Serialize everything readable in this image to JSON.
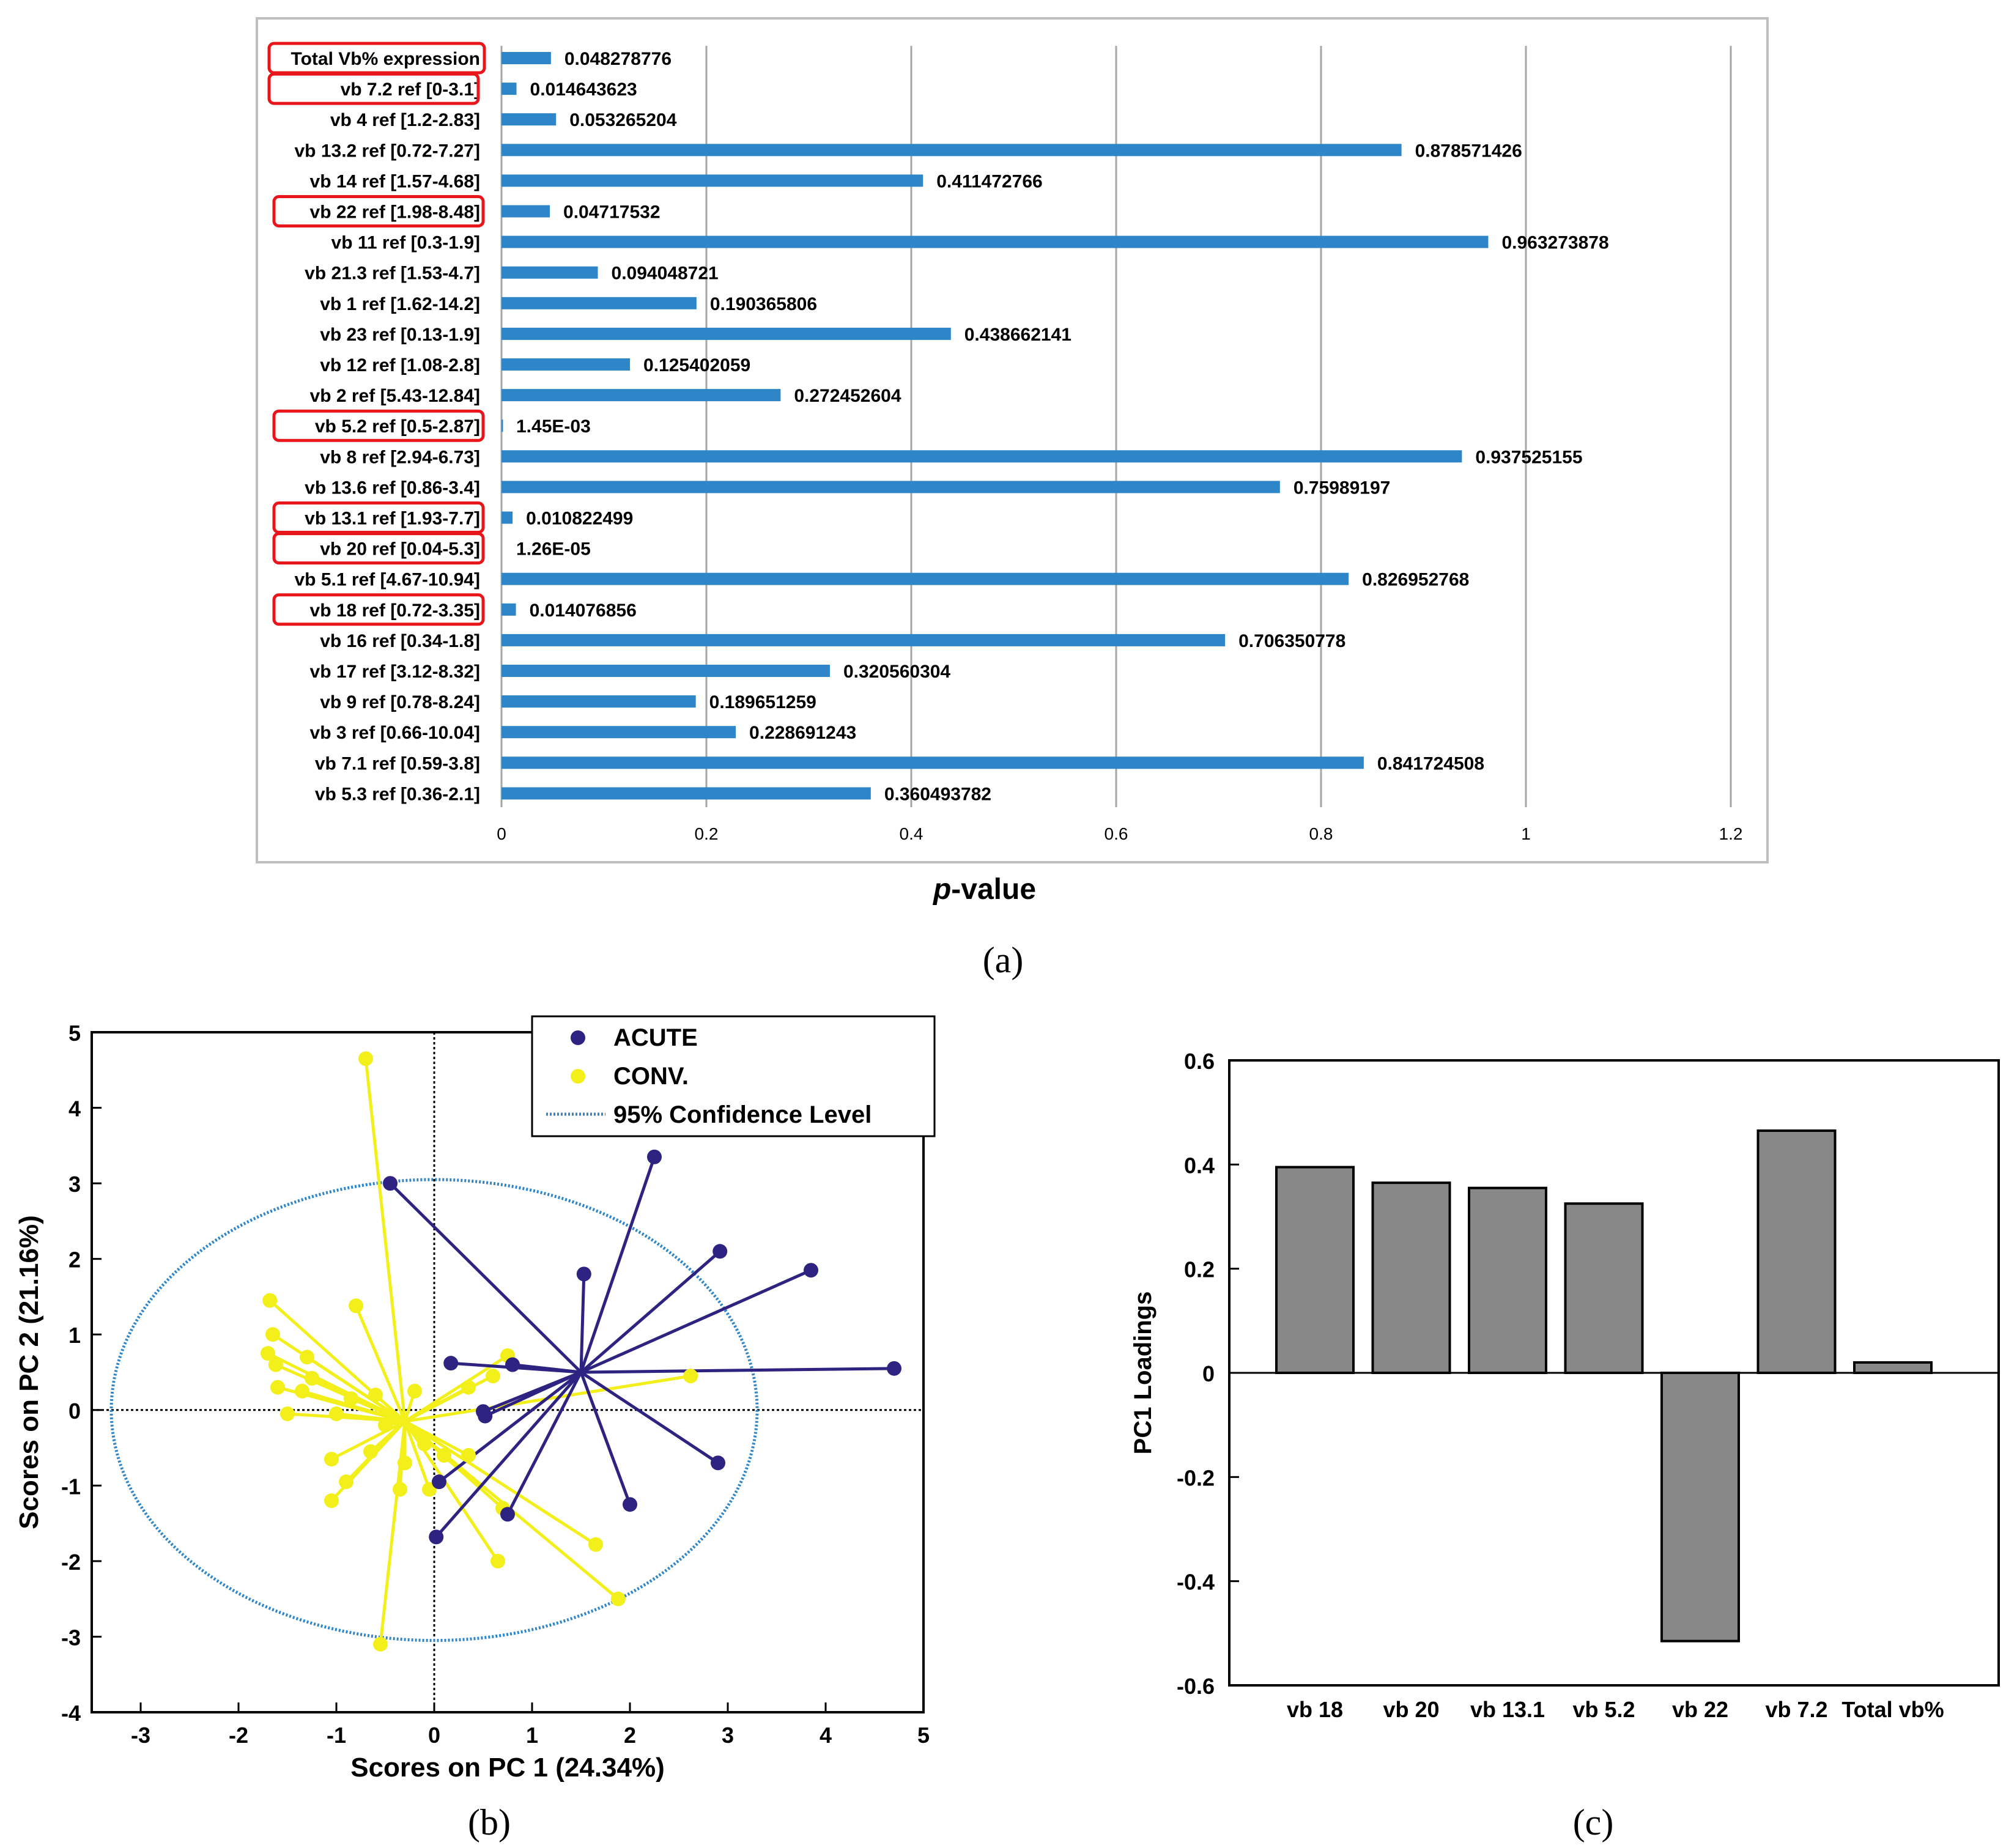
{
  "chart_data": [
    {
      "panel": "(a)",
      "type": "bar",
      "orientation": "horizontal",
      "xlabel_italic": "p",
      "xlabel_rest": "-value",
      "xlim": [
        0,
        1.2
      ],
      "xticks": [
        "0",
        "0.2",
        "0.4",
        "0.6",
        "0.8",
        "1",
        "1.2"
      ],
      "categories": [
        "Total Vb% expression",
        "vb 7.2  ref [0-3.1]",
        "vb 4  ref [1.2-2.83]",
        "vb 13.2  ref [0.72-7.27]",
        "vb 14  ref [1.57-4.68]",
        "vb 22  ref [1.98-8.48]",
        "vb 11  ref [0.3-1.9]",
        "vb 21.3  ref [1.53-4.7]",
        "vb 1  ref [1.62-14.2]",
        "vb 23  ref [0.13-1.9]",
        "vb 12  ref [1.08-2.8]",
        "vb 2  ref [5.43-12.84]",
        "vb 5.2  ref [0.5-2.87]",
        "vb 8  ref [2.94-6.73]",
        "vb 13.6  ref [0.86-3.4]",
        "vb 13.1  ref [1.93-7.7]",
        "vb 20 ref [0.04-5.3]",
        "vb 5.1 ref [4.67-10.94]",
        "vb 18 ref [0.72-3.35]",
        "vb 16 ref [0.34-1.8]",
        "vb 17 ref [3.12-8.32]",
        "vb 9 ref [0.78-8.24]",
        "vb 3 ref [0.66-10.04]",
        "vb 7.1 ref [0.59-3.8]",
        "vb 5.3 ref [0.36-2.1]"
      ],
      "values": [
        0.048278776,
        0.014643623,
        0.053265204,
        0.878571426,
        0.411472766,
        0.04717532,
        0.963273878,
        0.094048721,
        0.190365806,
        0.438662141,
        0.125402059,
        0.272452604,
        0.00145,
        0.937525155,
        0.75989197,
        0.010822499,
        1.26e-05,
        0.826952768,
        0.014076856,
        0.706350778,
        0.320560304,
        0.189651259,
        0.228691243,
        0.841724508,
        0.360493782
      ],
      "value_labels": [
        "0.048278776",
        "0.014643623",
        "0.053265204",
        "0.878571426",
        "0.411472766",
        "0.04717532",
        "0.963273878",
        "0.094048721",
        "0.190365806",
        "0.438662141",
        "0.125402059",
        "0.272452604",
        "1.45E-03",
        "0.937525155",
        "0.75989197",
        "0.010822499",
        "1.26E-05",
        "0.826952768",
        "0.014076856",
        "0.706350778",
        "0.320560304",
        "0.189651259",
        "0.228691243",
        "0.841724508",
        "0.360493782"
      ],
      "highlighted": [
        0,
        1,
        5,
        12,
        15,
        16,
        18
      ],
      "colors": {
        "bar": "#2e86c9",
        "highlight": "#e8161b",
        "grid": "#a6a6a6",
        "frame": "#bfbfbf"
      }
    },
    {
      "panel": "(b)",
      "type": "scatter",
      "xlabel": "Scores on PC 1 (24.34%)",
      "ylabel": "Scores on PC 2 (21.16%)",
      "xlim": [
        -3.5,
        5
      ],
      "ylim": [
        -4,
        5
      ],
      "xticks": [
        "-3",
        "-2",
        "-1",
        "0",
        "1",
        "2",
        "3",
        "4",
        "5"
      ],
      "yticks": [
        "-4",
        "-3",
        "-2",
        "-1",
        "0",
        "1",
        "2",
        "3",
        "4",
        "5"
      ],
      "legend": {
        "position": "top-right",
        "entries": [
          "ACUTE",
          "CONV.",
          "95% Confidence Level"
        ]
      },
      "ellipse": {
        "cx": -0.0,
        "cy": 0.0,
        "rx": 3.3,
        "ry": 3.05,
        "color": "#2e86c9"
      },
      "series": [
        {
          "name": "ACUTE",
          "color": "#2e2381",
          "centroid": [
            1.5,
            0.5
          ],
          "points": [
            [
              -0.45,
              3.0
            ],
            [
              2.25,
              3.35
            ],
            [
              2.92,
              2.1
            ],
            [
              3.85,
              1.85
            ],
            [
              1.53,
              1.8
            ],
            [
              0.17,
              0.62
            ],
            [
              0.8,
              0.6
            ],
            [
              4.7,
              0.55
            ],
            [
              0.5,
              -0.02
            ],
            [
              0.52,
              -0.08
            ],
            [
              2.9,
              -0.7
            ],
            [
              0.05,
              -0.95
            ],
            [
              2.0,
              -1.25
            ],
            [
              0.75,
              -1.38
            ],
            [
              0.02,
              -1.68
            ]
          ]
        },
        {
          "name": "CONV.",
          "color": "#f2ef1a",
          "centroid": [
            -0.3,
            -0.15
          ],
          "points": [
            [
              -0.7,
              4.65
            ],
            [
              -1.68,
              1.45
            ],
            [
              -0.8,
              1.38
            ],
            [
              -1.65,
              1.0
            ],
            [
              -1.7,
              0.75
            ],
            [
              -1.3,
              0.7
            ],
            [
              -1.62,
              0.6
            ],
            [
              -1.25,
              0.42
            ],
            [
              -1.6,
              0.3
            ],
            [
              -1.35,
              0.25
            ],
            [
              -1.5,
              -0.05
            ],
            [
              -1.0,
              -0.05
            ],
            [
              -0.85,
              0.15
            ],
            [
              -0.6,
              0.2
            ],
            [
              -0.2,
              0.25
            ],
            [
              0.75,
              0.72
            ],
            [
              0.6,
              0.45
            ],
            [
              2.62,
              0.45
            ],
            [
              0.35,
              0.3
            ],
            [
              -0.5,
              -0.2
            ],
            [
              -0.65,
              -0.55
            ],
            [
              -1.05,
              -0.65
            ],
            [
              -0.1,
              -0.45
            ],
            [
              -0.3,
              -0.7
            ],
            [
              0.1,
              -0.6
            ],
            [
              0.35,
              -0.6
            ],
            [
              -0.9,
              -0.95
            ],
            [
              -1.05,
              -1.2
            ],
            [
              -0.35,
              -1.05
            ],
            [
              -0.05,
              -1.05
            ],
            [
              0.7,
              -1.3
            ],
            [
              1.65,
              -1.78
            ],
            [
              0.65,
              -2.0
            ],
            [
              1.88,
              -2.5
            ],
            [
              -0.55,
              -3.1
            ]
          ]
        }
      ]
    },
    {
      "panel": "(c)",
      "type": "bar",
      "ylabel": "PC1 Loadings",
      "ylim": [
        -0.6,
        0.6
      ],
      "yticks": [
        "0.6",
        "0.4",
        "0.2",
        "0",
        "-0.2",
        "-0.4",
        "-0.6"
      ],
      "categories": [
        "vb 18",
        "vb 20",
        "vb 13.1",
        "vb 5.2",
        "vb 22",
        "vb 7.2",
        "Total vb%"
      ],
      "values": [
        0.395,
        0.365,
        0.355,
        0.325,
        -0.515,
        0.465,
        0.02
      ],
      "colors": {
        "bar": "#888888"
      }
    }
  ]
}
